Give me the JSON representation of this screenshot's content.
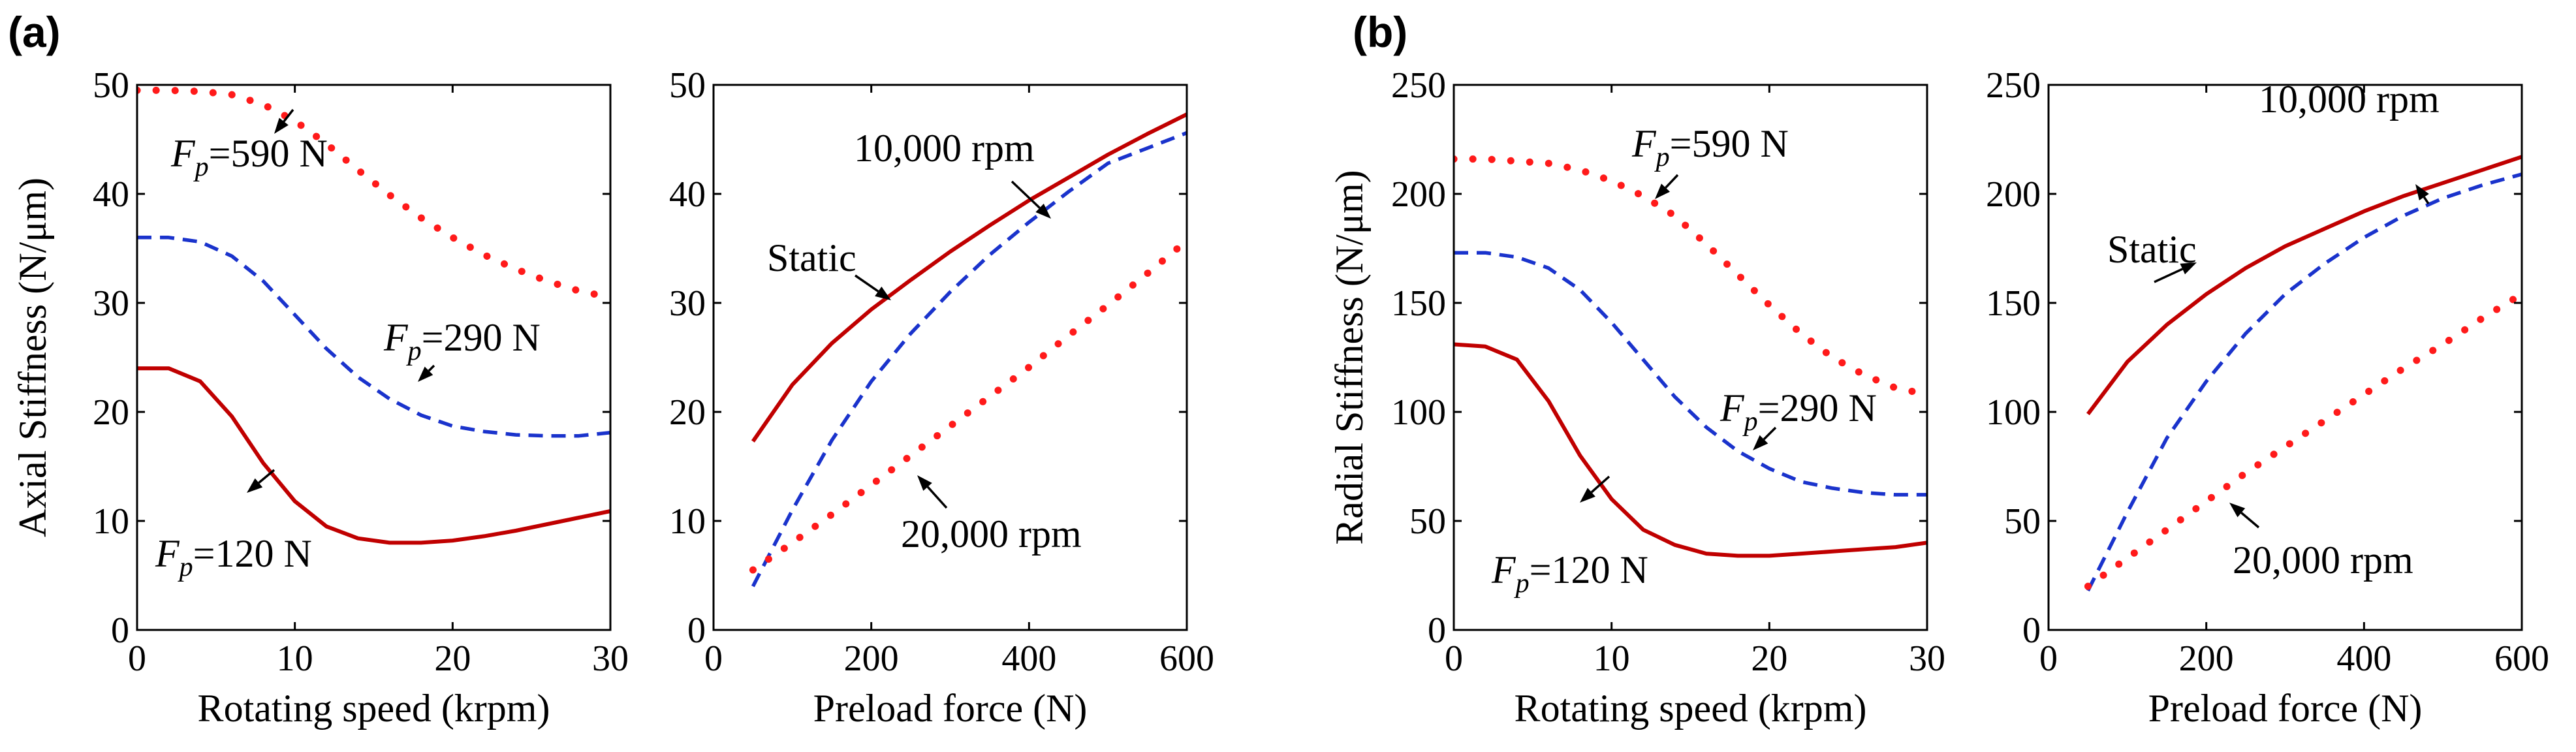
{
  "panel_labels": [
    "(a)",
    "(b)"
  ],
  "colors": {
    "solid": "#c00000",
    "dashed": "#1a33cc",
    "dotted": "#ff1a1a",
    "axis": "#000000"
  },
  "chart_data": [
    {
      "type": "line",
      "panel": "(a)",
      "xlabel": "Rotating speed (krpm)",
      "ylabel": "Axial Stiffness (N/μm)",
      "xlim": [
        0,
        30
      ],
      "ylim": [
        0,
        50
      ],
      "xticks": [
        0,
        10,
        20,
        30
      ],
      "yticks": [
        0,
        10,
        20,
        30,
        40,
        50
      ],
      "series": [
        {
          "name": "Fp=590 N",
          "style": "dotted",
          "x": [
            0,
            2,
            4,
            6,
            8,
            10,
            12,
            14,
            16,
            18,
            20,
            22,
            24,
            26,
            28,
            30
          ],
          "y": [
            49.5,
            49.5,
            49.4,
            49.1,
            48.2,
            46.7,
            44.6,
            42.2,
            39.9,
            37.8,
            36.0,
            34.4,
            33.1,
            32.0,
            31.1,
            30.5
          ]
        },
        {
          "name": "Fp=290 N",
          "style": "dashed",
          "x": [
            0,
            2,
            4,
            6,
            8,
            10,
            12,
            14,
            16,
            18,
            20,
            22,
            24,
            26,
            28,
            30
          ],
          "y": [
            36.0,
            36.0,
            35.6,
            34.3,
            32.0,
            28.9,
            25.8,
            23.2,
            21.2,
            19.7,
            18.7,
            18.2,
            17.9,
            17.8,
            17.8,
            18.1
          ]
        },
        {
          "name": "Fp=120 N",
          "style": "solid",
          "x": [
            0,
            2,
            4,
            6,
            8,
            10,
            12,
            14,
            16,
            18,
            20,
            22,
            24,
            26,
            28,
            30
          ],
          "y": [
            24.0,
            24.0,
            22.8,
            19.6,
            15.3,
            11.8,
            9.5,
            8.4,
            8.0,
            8.0,
            8.2,
            8.6,
            9.1,
            9.7,
            10.3,
            10.9
          ]
        }
      ],
      "annotations": [
        {
          "sym": "F",
          "sub": "p",
          "text": "=590 N"
        },
        {
          "sym": "F",
          "sub": "p",
          "text": "=290 N"
        },
        {
          "sym": "F",
          "sub": "p",
          "text": "=120 N"
        }
      ]
    },
    {
      "type": "line",
      "panel": "(a)",
      "xlabel": "Preload force (N)",
      "ylabel": "",
      "xlim": [
        0,
        600
      ],
      "ylim": [
        0,
        50
      ],
      "xticks": [
        0,
        200,
        400,
        600
      ],
      "yticks": [
        0,
        10,
        20,
        30,
        40,
        50
      ],
      "series": [
        {
          "name": "Static",
          "style": "solid",
          "x": [
            50,
            100,
            150,
            200,
            250,
            300,
            350,
            400,
            450,
            500,
            550,
            600
          ],
          "y": [
            17.3,
            22.5,
            26.3,
            29.4,
            32.1,
            34.7,
            37.1,
            39.4,
            41.5,
            43.6,
            45.5,
            47.3
          ]
        },
        {
          "name": "10,000 rpm",
          "style": "dashed",
          "x": [
            50,
            100,
            150,
            200,
            250,
            300,
            350,
            400,
            450,
            500,
            550,
            600
          ],
          "y": [
            4.0,
            11.0,
            17.4,
            22.8,
            27.2,
            31.0,
            34.4,
            37.4,
            40.2,
            42.8,
            44.2,
            45.6
          ]
        },
        {
          "name": "20,000 rpm",
          "style": "dotted",
          "x": [
            50,
            100,
            150,
            200,
            250,
            300,
            350,
            400,
            450,
            500,
            550,
            600
          ],
          "y": [
            5.5,
            8.0,
            10.6,
            13.3,
            16.0,
            18.7,
            21.4,
            24.1,
            27.0,
            29.8,
            32.7,
            35.7
          ]
        }
      ],
      "annotations": [
        {
          "text": "10,000 rpm"
        },
        {
          "text": "Static"
        },
        {
          "text": "20,000 rpm"
        }
      ]
    },
    {
      "type": "line",
      "panel": "(b)",
      "xlabel": "Rotating speed (krpm)",
      "ylabel": "Radial Stiffness (N/μm)",
      "xlim": [
        0,
        30
      ],
      "ylim": [
        0,
        250
      ],
      "xticks": [
        0,
        10,
        20,
        30
      ],
      "yticks": [
        0,
        50,
        100,
        150,
        200,
        250
      ],
      "series": [
        {
          "name": "Fp=590 N",
          "style": "dotted",
          "x": [
            0,
            2,
            4,
            6,
            8,
            10,
            12,
            14,
            16,
            18,
            20,
            22,
            24,
            26,
            28,
            30
          ],
          "y": [
            216,
            216,
            215,
            214,
            211,
            206,
            199,
            190,
            177,
            163,
            149,
            136,
            125,
            117,
            111,
            108
          ]
        },
        {
          "name": "Fp=290 N",
          "style": "dashed",
          "x": [
            0,
            2,
            4,
            6,
            8,
            10,
            12,
            14,
            16,
            18,
            20,
            22,
            24,
            26,
            28,
            30
          ],
          "y": [
            173,
            173,
            171,
            166,
            156,
            141,
            124,
            107,
            93,
            82,
            74,
            68,
            65,
            63,
            62,
            62
          ]
        },
        {
          "name": "Fp=120 N",
          "style": "solid",
          "x": [
            0,
            2,
            4,
            6,
            8,
            10,
            12,
            14,
            16,
            18,
            20,
            22,
            24,
            26,
            28,
            30
          ],
          "y": [
            131,
            130,
            124,
            105,
            80,
            60,
            46,
            39,
            35,
            34,
            34,
            35,
            36,
            37,
            38,
            40
          ]
        }
      ],
      "annotations": [
        {
          "sym": "F",
          "sub": "p",
          "text": "=590 N"
        },
        {
          "sym": "F",
          "sub": "p",
          "text": "=290 N"
        },
        {
          "sym": "F",
          "sub": "p",
          "text": "=120 N"
        }
      ]
    },
    {
      "type": "line",
      "panel": "(b)",
      "xlabel": "Preload force (N)",
      "ylabel": "",
      "xlim": [
        0,
        600
      ],
      "ylim": [
        0,
        250
      ],
      "xticks": [
        0,
        200,
        400,
        600
      ],
      "yticks": [
        0,
        50,
        100,
        150,
        200,
        250
      ],
      "series": [
        {
          "name": "Static",
          "style": "solid",
          "x": [
            50,
            100,
            150,
            200,
            250,
            300,
            350,
            400,
            450,
            500,
            550,
            600
          ],
          "y": [
            99,
            123,
            140,
            154,
            166,
            176,
            184,
            192,
            199,
            205,
            211,
            217
          ]
        },
        {
          "name": "10,000 rpm",
          "style": "dashed",
          "x": [
            50,
            100,
            150,
            200,
            250,
            300,
            350,
            400,
            450,
            500,
            550,
            600
          ],
          "y": [
            18,
            54,
            88,
            114,
            136,
            154,
            168,
            180,
            190,
            198,
            204,
            209
          ]
        },
        {
          "name": "20,000 rpm",
          "style": "dotted",
          "x": [
            50,
            100,
            150,
            200,
            250,
            300,
            350,
            400,
            450,
            500,
            550,
            600
          ],
          "y": [
            20,
            33,
            46,
            59,
            72,
            84,
            96,
            108,
            120,
            131,
            143,
            154
          ]
        }
      ],
      "annotations": [
        {
          "text": "10,000 rpm"
        },
        {
          "text": "Static"
        },
        {
          "text": "20,000 rpm"
        }
      ]
    }
  ]
}
